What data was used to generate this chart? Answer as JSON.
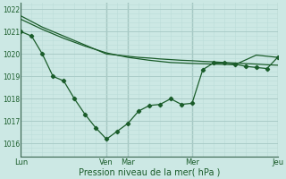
{
  "background_color": "#cce8e4",
  "grid_major_color": "#aaccc8",
  "grid_minor_color": "#bbddd9",
  "line_color": "#1a5c2a",
  "xlabel": "Pression niveau de la mer( hPa )",
  "ylim": [
    1015.4,
    1022.3
  ],
  "yticks": [
    1016,
    1017,
    1018,
    1019,
    1020,
    1021,
    1022
  ],
  "day_labels": [
    "Lun",
    "Ven",
    "Mar",
    "Mer",
    "Jeu"
  ],
  "day_positions": [
    0,
    32,
    40,
    64,
    96
  ],
  "vline_positions": [
    0,
    32,
    40,
    64,
    96
  ],
  "line1_x": [
    0,
    8,
    16,
    24,
    32,
    36,
    40,
    44,
    48,
    52,
    56,
    60,
    64,
    68,
    72,
    76,
    80,
    84,
    88,
    92,
    96
  ],
  "line1_y": [
    1021.7,
    1021.2,
    1020.8,
    1020.4,
    1020.0,
    1019.95,
    1019.9,
    1019.85,
    1019.82,
    1019.78,
    1019.75,
    1019.72,
    1019.7,
    1019.67,
    1019.65,
    1019.62,
    1019.6,
    1019.57,
    1019.55,
    1019.52,
    1019.5
  ],
  "line2_x": [
    0,
    4,
    8,
    12,
    16,
    20,
    24,
    28,
    32,
    36,
    40,
    44,
    48,
    52,
    56,
    60,
    64,
    68,
    72,
    76,
    80,
    84,
    88,
    92,
    96
  ],
  "line2_y": [
    1021.0,
    1020.8,
    1020.0,
    1019.0,
    1018.8,
    1018.0,
    1017.3,
    1016.7,
    1016.2,
    1016.55,
    1016.9,
    1017.45,
    1017.7,
    1017.75,
    1018.0,
    1017.75,
    1017.8,
    1019.3,
    1019.6,
    1019.6,
    1019.55,
    1019.45,
    1019.4,
    1019.35,
    1019.85
  ],
  "line3_x": [
    0,
    8,
    16,
    24,
    32,
    40,
    48,
    56,
    64,
    72,
    80,
    88,
    96
  ],
  "line3_y": [
    1021.55,
    1021.1,
    1020.7,
    1020.35,
    1020.05,
    1019.85,
    1019.72,
    1019.62,
    1019.58,
    1019.55,
    1019.52,
    1019.95,
    1019.85
  ]
}
